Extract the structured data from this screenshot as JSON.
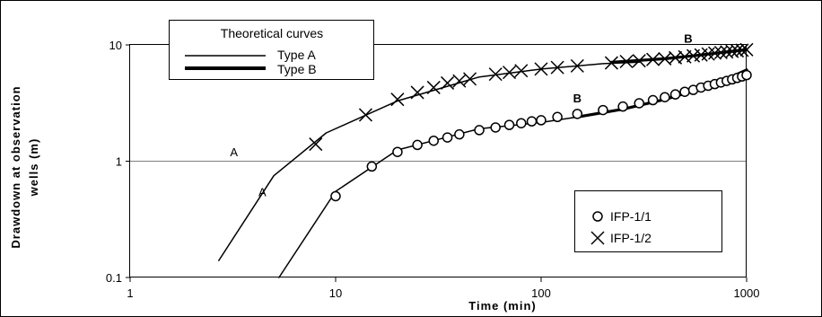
{
  "chart_data": {
    "type": "scatter",
    "xscale": "log",
    "yscale": "log",
    "xlim": [
      1,
      1000
    ],
    "ylim": [
      0.1,
      10
    ],
    "xlabel": "Time (min)",
    "ylabel": [
      "Drawdown at observation",
      "wells (m)"
    ],
    "x_ticks": [
      {
        "value": 1,
        "label": "1"
      },
      {
        "value": 10,
        "label": "10"
      },
      {
        "value": 100,
        "label": "100"
      },
      {
        "value": 1000,
        "label": "1000"
      }
    ],
    "y_ticks": [
      {
        "value": 0.1,
        "label": "0.1"
      },
      {
        "value": 1,
        "label": "1"
      },
      {
        "value": 10,
        "label": "10"
      }
    ],
    "curve_legend": {
      "title": "Theoretical curves",
      "entries": [
        {
          "name": "Type A",
          "style": "thin"
        },
        {
          "name": "Type B",
          "style": "thick"
        }
      ]
    },
    "marker_legend": {
      "position": "bottom-right",
      "entries": [
        {
          "name": "IFP-1/1",
          "marker": "circle"
        },
        {
          "name": "IFP-1/2",
          "marker": "cross"
        }
      ]
    },
    "curves": [
      {
        "name": "Type A",
        "style": "thin",
        "points": [
          [
            2.7,
            0.14
          ],
          [
            5,
            0.75
          ],
          [
            9,
            1.75
          ],
          [
            20,
            3.3
          ],
          [
            50,
            5.3
          ],
          [
            100,
            6.2
          ],
          [
            200,
            6.9
          ],
          [
            300,
            7.1
          ]
        ]
      },
      {
        "name": "Type B",
        "style": "thick",
        "points": [
          [
            220,
            7.1
          ],
          [
            400,
            7.6
          ],
          [
            600,
            8.2
          ],
          [
            800,
            8.7
          ],
          [
            1000,
            9.1
          ]
        ]
      },
      {
        "name": "Type A",
        "style": "thin",
        "points": [
          [
            5.3,
            0.1
          ],
          [
            10,
            0.55
          ],
          [
            20,
            1.25
          ],
          [
            50,
            1.9
          ],
          [
            100,
            2.15
          ],
          [
            150,
            2.4
          ]
        ]
      },
      {
        "name": "Type B",
        "style": "thick",
        "points": [
          [
            150,
            2.4
          ],
          [
            250,
            2.8
          ],
          [
            400,
            3.4
          ],
          [
            600,
            4.2
          ],
          [
            800,
            5.1
          ],
          [
            1000,
            6.1
          ]
        ]
      }
    ],
    "series": [
      {
        "name": "IFP-1/1",
        "marker": "circle",
        "points": [
          [
            10,
            0.5
          ],
          [
            15,
            0.9
          ],
          [
            20,
            1.2
          ],
          [
            25,
            1.38
          ],
          [
            30,
            1.5
          ],
          [
            35,
            1.6
          ],
          [
            40,
            1.7
          ],
          [
            50,
            1.85
          ],
          [
            60,
            1.95
          ],
          [
            70,
            2.05
          ],
          [
            80,
            2.12
          ],
          [
            90,
            2.2
          ],
          [
            100,
            2.25
          ],
          [
            120,
            2.4
          ],
          [
            150,
            2.55
          ],
          [
            200,
            2.75
          ],
          [
            250,
            2.95
          ],
          [
            300,
            3.15
          ],
          [
            350,
            3.35
          ],
          [
            400,
            3.55
          ],
          [
            450,
            3.75
          ],
          [
            500,
            3.95
          ],
          [
            550,
            4.1
          ],
          [
            600,
            4.3
          ],
          [
            650,
            4.45
          ],
          [
            700,
            4.6
          ],
          [
            750,
            4.75
          ],
          [
            800,
            4.9
          ],
          [
            850,
            5.05
          ],
          [
            900,
            5.2
          ],
          [
            950,
            5.35
          ],
          [
            1000,
            5.5
          ]
        ]
      },
      {
        "name": "IFP-1/2",
        "marker": "cross",
        "points": [
          [
            8,
            1.4
          ],
          [
            14,
            2.5
          ],
          [
            20,
            3.4
          ],
          [
            25,
            3.9
          ],
          [
            30,
            4.3
          ],
          [
            35,
            4.7
          ],
          [
            40,
            4.9
          ],
          [
            45,
            5.1
          ],
          [
            60,
            5.6
          ],
          [
            70,
            5.8
          ],
          [
            80,
            6.0
          ],
          [
            100,
            6.2
          ],
          [
            120,
            6.4
          ],
          [
            150,
            6.6
          ],
          [
            220,
            7.0
          ],
          [
            260,
            7.2
          ],
          [
            300,
            7.3
          ],
          [
            350,
            7.5
          ],
          [
            400,
            7.6
          ],
          [
            450,
            7.75
          ],
          [
            500,
            7.9
          ],
          [
            550,
            8.05
          ],
          [
            600,
            8.2
          ],
          [
            650,
            8.35
          ],
          [
            700,
            8.5
          ],
          [
            750,
            8.6
          ],
          [
            800,
            8.7
          ],
          [
            850,
            8.8
          ],
          [
            900,
            8.9
          ],
          [
            950,
            9.0
          ],
          [
            1000,
            9.1
          ]
        ]
      }
    ],
    "annotations": [
      {
        "text": "A",
        "x": 3.2,
        "y": 1.1,
        "weight": "normal"
      },
      {
        "text": "A",
        "x": 4.4,
        "y": 0.5,
        "weight": "normal"
      },
      {
        "text": "B",
        "x": 520,
        "y": 10.5,
        "weight": "bold"
      },
      {
        "text": "B",
        "x": 150,
        "y": 3.2,
        "weight": "bold"
      }
    ]
  }
}
